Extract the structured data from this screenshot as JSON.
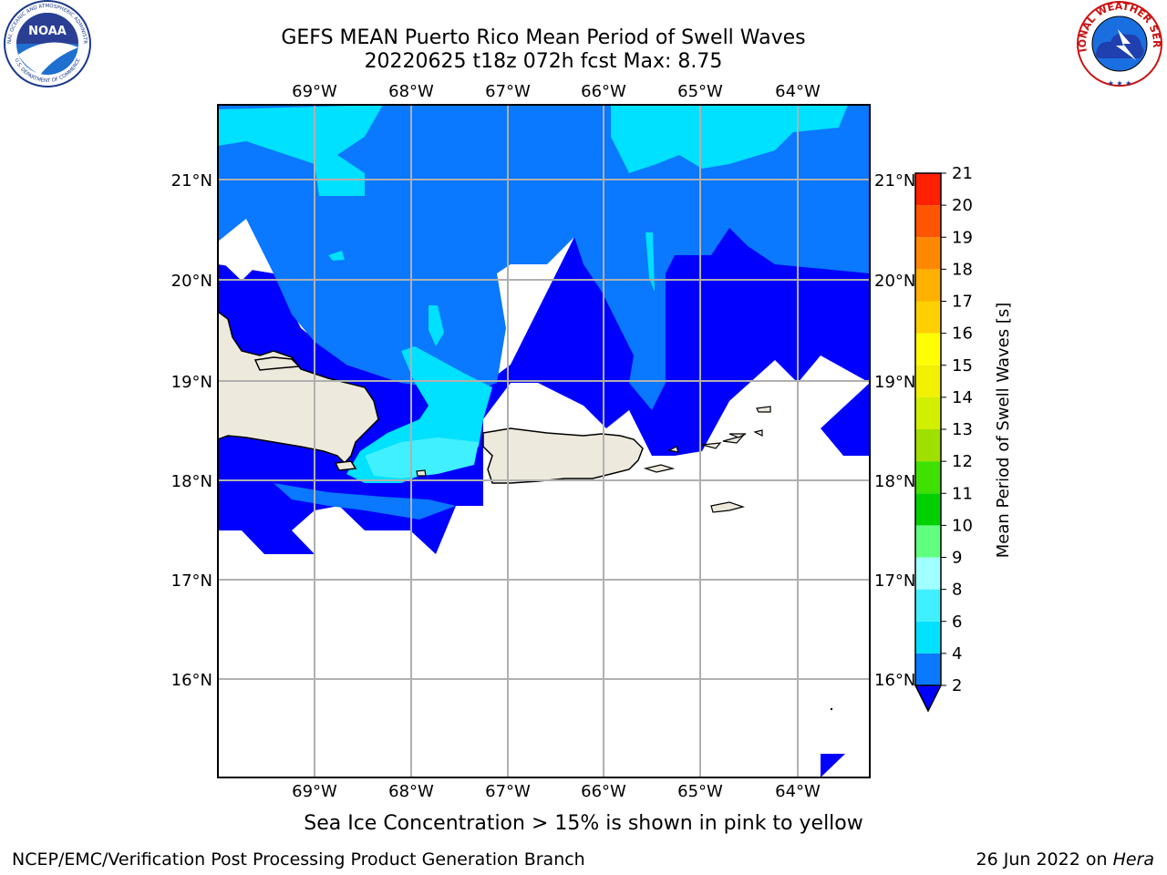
{
  "header": {
    "title_line1": "GEFS MEAN Puerto Rico Mean Period of Swell Waves",
    "title_line2": "20220625 t18z 072h fcst   Max: 8.75"
  },
  "logos": {
    "left": "noaa-logo",
    "left_text": "NOAA",
    "left_ring_top": "NATIONAL OCEANIC AND ATMOSPHERIC ADMINISTRATION",
    "left_ring_bottom": "U.S. DEPARTMENT OF COMMERCE",
    "right": "national-weather-service-logo",
    "right_ring_text": "NATIONAL WEATHER SERVICE"
  },
  "map": {
    "lon_labels": [
      "69°W",
      "68°W",
      "67°W",
      "66°W",
      "65°W",
      "64°W"
    ],
    "lat_labels": [
      "21°N",
      "20°N",
      "19°N",
      "18°N",
      "17°N",
      "16°N"
    ],
    "land_color": "#ede9dc",
    "grid_color": "#b0b0b0"
  },
  "colorbar": {
    "label": "Mean Period of Swell Waves [s]",
    "ticks": [
      "2",
      "4",
      "6",
      "8",
      "9",
      "10",
      "11",
      "12",
      "13",
      "14",
      "15",
      "16",
      "17",
      "18",
      "19",
      "20",
      "21"
    ],
    "colors": [
      "#0a78ff",
      "#00e0ff",
      "#40f0ff",
      "#a0ffff",
      "#60ff80",
      "#00d000",
      "#40e000",
      "#a0e000",
      "#d0f000",
      "#f0f000",
      "#ffff00",
      "#ffd000",
      "#ffb000",
      "#ff8800",
      "#ff5500",
      "#ff2000"
    ],
    "under_color": "#0000ff"
  },
  "note": "Sea Ice Concentration > 15% is shown in pink to yellow",
  "footer": {
    "left": "NCEP/EMC/Verification Post Processing Product Generation Branch",
    "date": "26 Jun 2022 on ",
    "machine": "Hera"
  }
}
